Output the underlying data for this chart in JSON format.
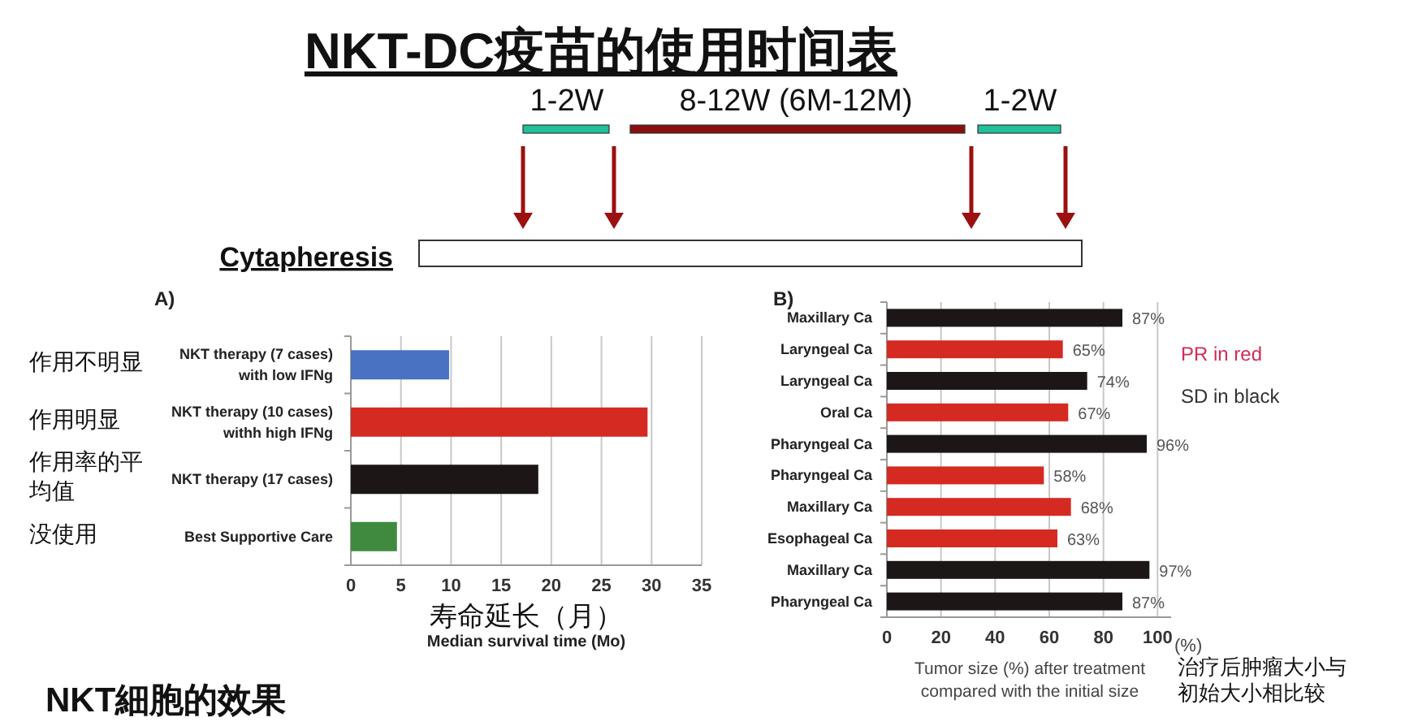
{
  "chart_data": [
    {
      "type": "other",
      "title": "NKT-DC疫苗的使用时间表",
      "annotations": [
        "1-2W",
        "8-12W (6M-12M)",
        "1-2W",
        "Cytapheresis"
      ]
    },
    {
      "type": "bar",
      "orientation": "horizontal",
      "title": "A)",
      "categories": [
        "NKT therapy (7 cases)\nwith low IFNg",
        "NKT therapy (10 cases)\nwithh high IFNg",
        "NKT therapy (17 cases)",
        "Best Supportive Care"
      ],
      "values": [
        9.8,
        29.6,
        18.7,
        4.6
      ],
      "colors": [
        "#4a72c2",
        "#d42a22",
        "#1c1616",
        "#3f8a3f"
      ],
      "xlim": [
        0,
        35
      ],
      "xticks": [
        0,
        5,
        10,
        15,
        20,
        25,
        30,
        35
      ],
      "grid": "x",
      "xlabel": "寿命延长（月）",
      "annotations": [
        "作用不明显",
        "作用明显",
        "作用率的平均值",
        "没使用",
        "Median survival time (Mo)",
        "NKT細胞的效果"
      ]
    },
    {
      "type": "bar",
      "orientation": "horizontal",
      "title": "B)",
      "categories": [
        "Maxillary Ca",
        "Laryngeal Ca",
        "Laryngeal Ca",
        "Oral Ca",
        "Pharyngeal Ca",
        "Pharyngeal Ca",
        "Maxillary Ca",
        "Esophageal Ca",
        "Maxillary Ca",
        "Pharyngeal Ca"
      ],
      "values": [
        87,
        65,
        74,
        67,
        96,
        58,
        68,
        63,
        97,
        87
      ],
      "colors": [
        "#1c1616",
        "#d42a22",
        "#1c1616",
        "#d42a22",
        "#1c1616",
        "#d42a22",
        "#d42a22",
        "#d42a22",
        "#1c1616",
        "#1c1616"
      ],
      "value_labels": [
        "87%",
        "65%",
        "74%",
        "67%",
        "96%",
        "58%",
        "68%",
        "63%",
        "97%",
        "87%"
      ],
      "xlim": [
        0,
        105
      ],
      "xticks": [
        0,
        20,
        40,
        60,
        80,
        100
      ],
      "grid": "x",
      "xlabel": "Tumor size (%) after treatment\ncompared with the initial size",
      "annotations": [
        "PR in red",
        "SD in black",
        "(%)",
        "治疗后肿瘤大小与初始大小相比较"
      ]
    }
  ]
}
